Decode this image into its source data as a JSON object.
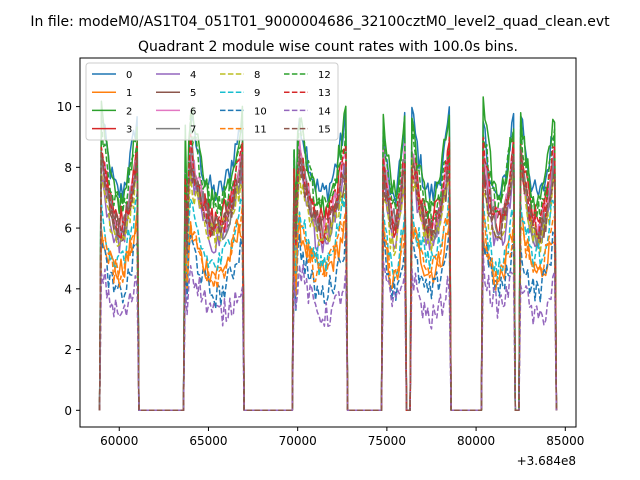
{
  "chart_data": {
    "type": "line",
    "suptitle": "In file: modeM0/AS1T04_051T01_9000004686_32100cztM0_level2_quad_clean.evt",
    "title": "Quadrant 2 module wise count rates with 100.0s bins.",
    "xlabel": "",
    "ylabel": "",
    "x_offset_label": "+3.684e8",
    "xlim": [
      57800,
      85600
    ],
    "ylim": [
      -0.55,
      11.6
    ],
    "xticks": [
      60000,
      65000,
      70000,
      75000,
      80000,
      85000
    ],
    "xtick_labels": [
      "60000",
      "65000",
      "70000",
      "75000",
      "80000",
      "85000"
    ],
    "yticks": [
      0,
      2,
      4,
      6,
      8,
      10
    ],
    "ytick_labels": [
      "0",
      "2",
      "4",
      "6",
      "8",
      "10"
    ],
    "legend_position": "upper-left",
    "on_intervals": [
      [
        59000,
        61000
      ],
      [
        63700,
        63900
      ],
      [
        64000,
        66900
      ],
      [
        69800,
        70000
      ],
      [
        70100,
        72700
      ],
      [
        74800,
        76000
      ],
      [
        76400,
        78500
      ],
      [
        80400,
        82100
      ],
      [
        82500,
        84400
      ]
    ],
    "series": [
      {
        "name": "0",
        "color": "#1f77b4",
        "dash": "solid",
        "level": 9.6
      },
      {
        "name": "1",
        "color": "#ff7f0e",
        "dash": "solid",
        "level": 6.0
      },
      {
        "name": "2",
        "color": "#2ca02c",
        "dash": "solid",
        "level": 9.8
      },
      {
        "name": "3",
        "color": "#d62728",
        "dash": "solid",
        "level": 8.4
      },
      {
        "name": "4",
        "color": "#9467bd",
        "dash": "solid",
        "level": 8.0
      },
      {
        "name": "5",
        "color": "#8c564b",
        "dash": "solid",
        "level": 8.2
      },
      {
        "name": "6",
        "color": "#e377c2",
        "dash": "solid",
        "level": 8.6
      },
      {
        "name": "7",
        "color": "#7f7f7f",
        "dash": "solid",
        "level": 8.3
      },
      {
        "name": "8",
        "color": "#bcbd22",
        "dash": "dashed",
        "level": 7.6
      },
      {
        "name": "9",
        "color": "#17becf",
        "dash": "dashed",
        "level": 6.8
      },
      {
        "name": "10",
        "color": "#1f77b4",
        "dash": "dashed",
        "level": 5.6
      },
      {
        "name": "11",
        "color": "#ff7f0e",
        "dash": "dashed",
        "level": 6.3
      },
      {
        "name": "12",
        "color": "#2ca02c",
        "dash": "dashed",
        "level": 9.2
      },
      {
        "name": "13",
        "color": "#d62728",
        "dash": "dashed",
        "level": 8.6
      },
      {
        "name": "14",
        "color": "#9467bd",
        "dash": "dashed",
        "level": 4.5
      },
      {
        "name": "15",
        "color": "#8c564b",
        "dash": "dashed",
        "level": 8.0
      }
    ]
  }
}
